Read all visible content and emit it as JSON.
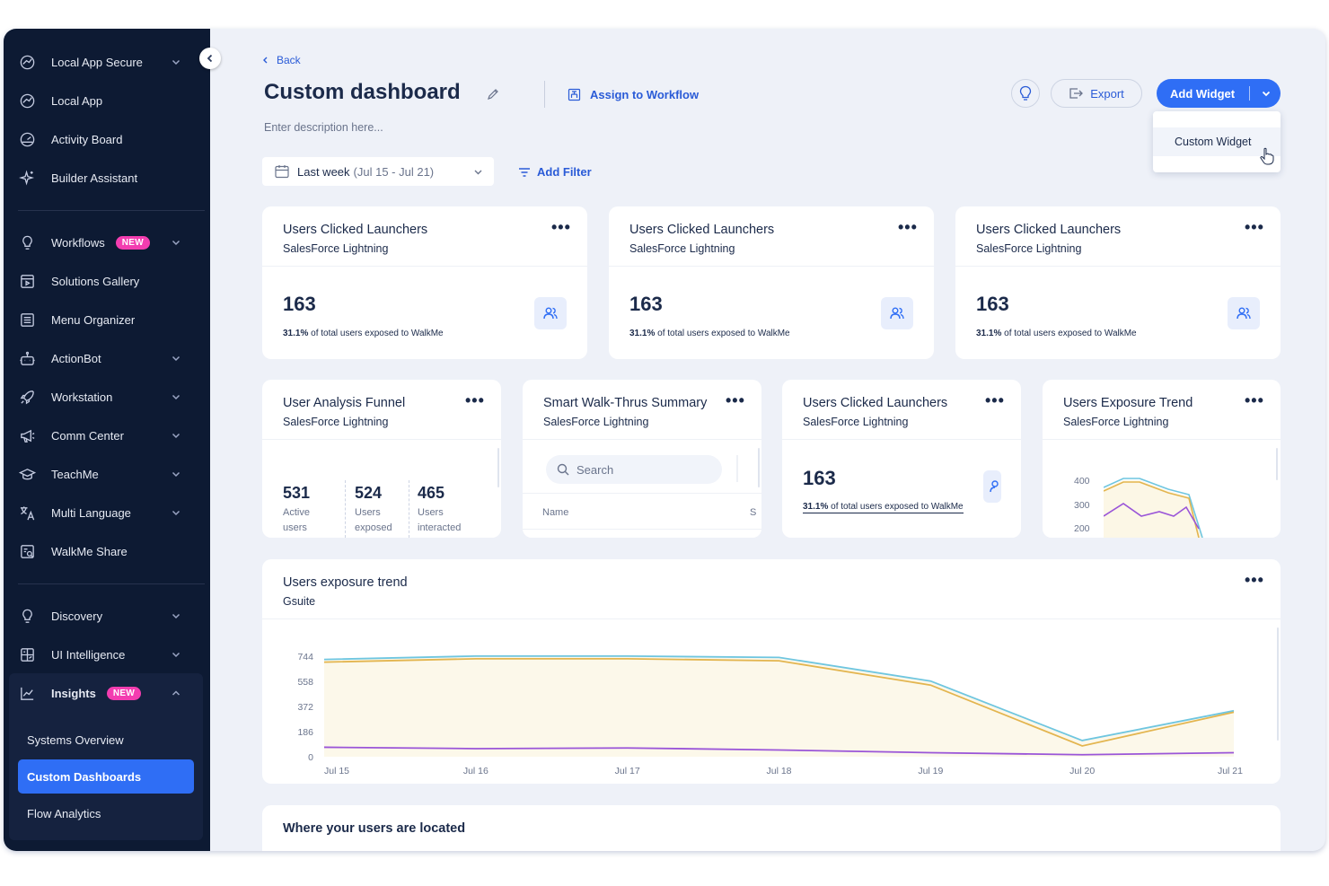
{
  "sidebar": {
    "items": [
      {
        "label": "Local App Secure",
        "icon": "shield-check-icon",
        "chevron": true
      },
      {
        "label": "Local App",
        "icon": "shield-check-icon",
        "chevron": false
      },
      {
        "label": "Activity Board",
        "icon": "gauge-icon",
        "chevron": false
      },
      {
        "label": "Builder Assistant",
        "icon": "sparkle-icon",
        "chevron": false
      },
      {
        "label": "Workflows",
        "icon": "bulb-icon",
        "chevron": true,
        "badge": "NEW"
      },
      {
        "label": "Solutions Gallery",
        "icon": "gallery-icon",
        "chevron": false
      },
      {
        "label": "Menu Organizer",
        "icon": "menu-list-icon",
        "chevron": false
      },
      {
        "label": "ActionBot",
        "icon": "bot-icon",
        "chevron": true
      },
      {
        "label": "Workstation",
        "icon": "rocket-icon",
        "chevron": true
      },
      {
        "label": "Comm Center",
        "icon": "megaphone-icon",
        "chevron": true
      },
      {
        "label": "TeachMe",
        "icon": "graduation-cap-icon",
        "chevron": true
      },
      {
        "label": "Multi Language",
        "icon": "translate-icon",
        "chevron": true
      },
      {
        "label": "WalkMe Share",
        "icon": "share-icon",
        "chevron": false
      },
      {
        "label": "Discovery",
        "icon": "bulb-icon",
        "chevron": true
      },
      {
        "label": "UI Intelligence",
        "icon": "ui-grid-icon",
        "chevron": true
      },
      {
        "label": "Insights",
        "icon": "line-chart-icon",
        "chevron": "up",
        "badge": "NEW"
      }
    ],
    "insights_sub": [
      {
        "label": "Systems Overview",
        "active": false
      },
      {
        "label": "Custom Dashboards",
        "active": true
      },
      {
        "label": "Flow Analytics",
        "active": false
      }
    ]
  },
  "header": {
    "back": "Back",
    "title": "Custom dashboard",
    "assign": "Assign to Workflow",
    "description_placeholder": "Enter description here...",
    "export": "Export",
    "add_widget": "Add Widget",
    "dropdown_option": "Custom Widget"
  },
  "filters": {
    "date_label": "Last week",
    "date_range": "(Jul 15 - Jul 21)",
    "add_filter": "Add Filter"
  },
  "top_cards": [
    {
      "title": "Users Clicked Launchers",
      "subtitle": "SalesForce Lightning",
      "value": "163",
      "pct": "31.1%",
      "note": " of total users exposed to WalkMe"
    },
    {
      "title": "Users Clicked Launchers",
      "subtitle": "SalesForce Lightning",
      "value": "163",
      "pct": "31.1%",
      "note": " of total users exposed to WalkMe"
    },
    {
      "title": "Users Clicked Launchers",
      "subtitle": "SalesForce Lightning",
      "value": "163",
      "pct": "31.1%",
      "note": " of total users exposed to WalkMe"
    }
  ],
  "funnel": {
    "title": "User Analysis Funnel",
    "subtitle": "SalesForce Lightning",
    "stats": [
      {
        "value": "531",
        "l1": "Active",
        "l2": "users"
      },
      {
        "value": "524",
        "l1": "Users",
        "l2": "exposed"
      },
      {
        "value": "465",
        "l1": "Users",
        "l2": "interacted"
      }
    ]
  },
  "smart": {
    "title": "Smart Walk-Thrus Summary",
    "subtitle": "SalesForce Lightning",
    "search_placeholder": "Search",
    "column": "Name",
    "column2": "S"
  },
  "mid_launchers": {
    "title": "Users Clicked Launchers",
    "subtitle": "SalesForce Lightning",
    "value": "163",
    "pct": "31.1%",
    "note": " of total users exposed to WalkMe"
  },
  "exposure_small": {
    "title": "Users Exposure Trend",
    "subtitle": "SalesForce Lightning",
    "yticks": [
      "400",
      "300",
      "200"
    ]
  },
  "trend": {
    "title": "Users exposure trend",
    "subtitle": "Gsuite"
  },
  "location": {
    "title": "Where your users are located"
  },
  "chart_data": {
    "type": "area",
    "title": "Users exposure trend",
    "categories": [
      "Jul 15",
      "Jul 16",
      "Jul 17",
      "Jul 18",
      "Jul 19",
      "Jul 20",
      "Jul 21"
    ],
    "y_ticks": [
      0,
      186,
      372,
      558,
      744
    ],
    "ylim": [
      0,
      800
    ],
    "series": [
      {
        "color": "#6fc6e0",
        "values": [
          720,
          745,
          745,
          735,
          560,
          120,
          340
        ]
      },
      {
        "color": "#e3b54f",
        "values": [
          700,
          725,
          725,
          710,
          530,
          80,
          330
        ]
      },
      {
        "color": "#9a55d8",
        "values": [
          70,
          60,
          65,
          50,
          30,
          15,
          30
        ]
      }
    ],
    "grid": false,
    "legend": "none"
  }
}
